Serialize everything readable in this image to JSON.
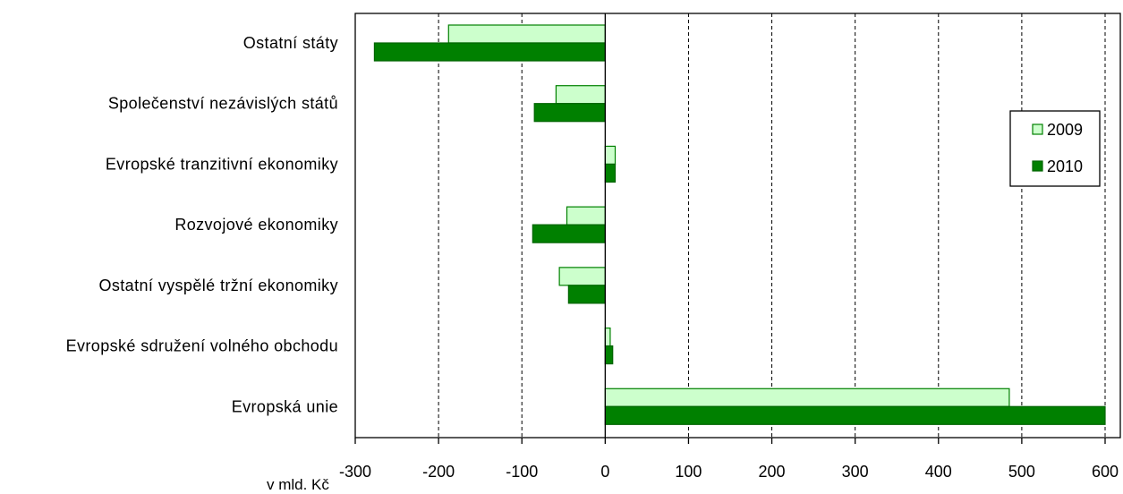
{
  "chart_data": {
    "type": "bar",
    "orientation": "horizontal",
    "categories": [
      "Ostatní státy",
      "Společenství nezávislých států",
      "Evropské tranzitivní ekonomiky",
      "Rozvojové ekonomiky",
      "Ostatní vyspělé tržní ekonomiky",
      "Evropské sdružení volného obchodu",
      "Evropská unie"
    ],
    "series": [
      {
        "name": "2009",
        "color": "#ccffcc",
        "stroke": "#008000",
        "values": [
          -188,
          -59,
          12,
          -46,
          -55,
          6,
          485
        ]
      },
      {
        "name": "2010",
        "color": "#008000",
        "stroke": "#006400",
        "values": [
          -277,
          -85,
          12,
          -87,
          -44,
          9,
          600
        ]
      }
    ],
    "xlim": [
      -300,
      600
    ],
    "xticks": [
      -300,
      -200,
      -100,
      0,
      100,
      200,
      300,
      400,
      500,
      600
    ],
    "xlabel": "v mld. Kč",
    "grid": "vertical dashed",
    "legend_position": "right"
  }
}
